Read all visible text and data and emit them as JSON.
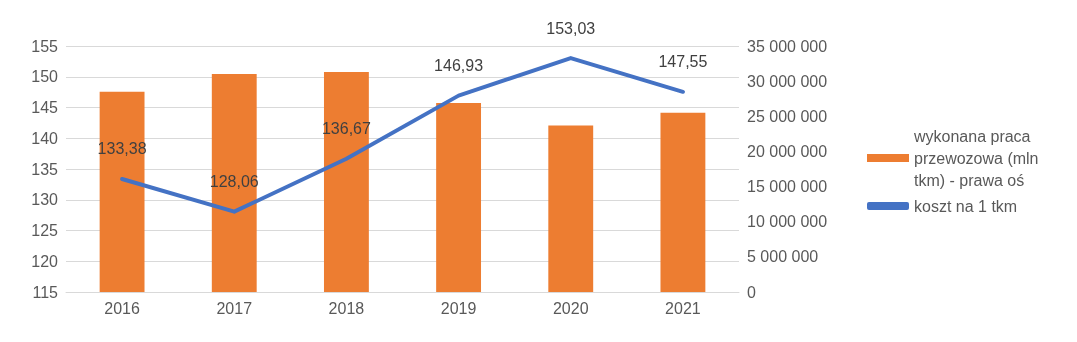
{
  "chart_data": {
    "type": "bar",
    "categories": [
      "2016",
      "2017",
      "2018",
      "2019",
      "2020",
      "2021"
    ],
    "series": [
      {
        "name": "wykonana praca przewozowa (mln tkm) - prawa oś",
        "color": "#ed7d31",
        "axis": "y2",
        "values": [
          28500000,
          31000000,
          31300000,
          26900000,
          23700000,
          25500000
        ]
      },
      {
        "name": "koszt na 1 tkm",
        "type": "line",
        "color": "#4472c4",
        "marker": "none",
        "values": [
          133.38,
          128.06,
          136.67,
          146.93,
          153.03,
          147.55
        ],
        "value_labels": [
          "133,38",
          "128,06",
          "136,67",
          "146,93",
          "153,03",
          "147,55"
        ]
      }
    ],
    "ylim": [
      115,
      155
    ],
    "yticks": [
      115,
      120,
      125,
      130,
      135,
      140,
      145,
      150,
      155
    ],
    "y2lim": [
      0,
      35000000
    ],
    "y2ticks": [
      {
        "value": 0,
        "label": "0"
      },
      {
        "value": 5000000,
        "label": "5 000 000"
      },
      {
        "value": 10000000,
        "label": "10 000 000"
      },
      {
        "value": 15000000,
        "label": "15 000 000"
      },
      {
        "value": 20000000,
        "label": "20 000 000"
      },
      {
        "value": 25000000,
        "label": "25 000 000"
      },
      {
        "value": 30000000,
        "label": "30 000 000"
      },
      {
        "value": 35000000,
        "label": "35 000 000"
      }
    ],
    "grid": "y",
    "legend": "right"
  }
}
